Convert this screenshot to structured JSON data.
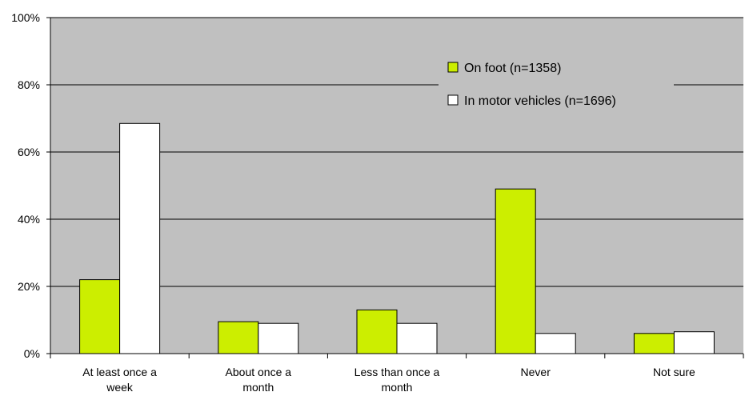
{
  "chart_data": {
    "type": "bar",
    "title": "",
    "xlabel": "",
    "ylabel": "",
    "ylim": [
      0,
      100
    ],
    "yticks": [
      0,
      20,
      40,
      60,
      80,
      100
    ],
    "ytick_labels": [
      "0%",
      "20%",
      "40%",
      "60%",
      "80%",
      "100%"
    ],
    "grid": true,
    "legend_position": "top-right",
    "categories": [
      [
        "At least once a",
        "week"
      ],
      [
        "About once a",
        "month"
      ],
      [
        "Less than once a",
        "month"
      ],
      [
        "Never"
      ],
      [
        "Not sure"
      ]
    ],
    "series": [
      {
        "name": "On foot (n=1358)",
        "color": "#ccee00",
        "values": [
          22,
          9.5,
          13,
          49,
          6
        ]
      },
      {
        "name": "In motor vehicles (n=1696)",
        "color": "#ffffff",
        "values": [
          68.5,
          9,
          9,
          6,
          6.5
        ]
      }
    ],
    "colors": {
      "plot_background": "#c0c0c0",
      "gridline": "#000000",
      "bar_outline": "#000000"
    }
  }
}
